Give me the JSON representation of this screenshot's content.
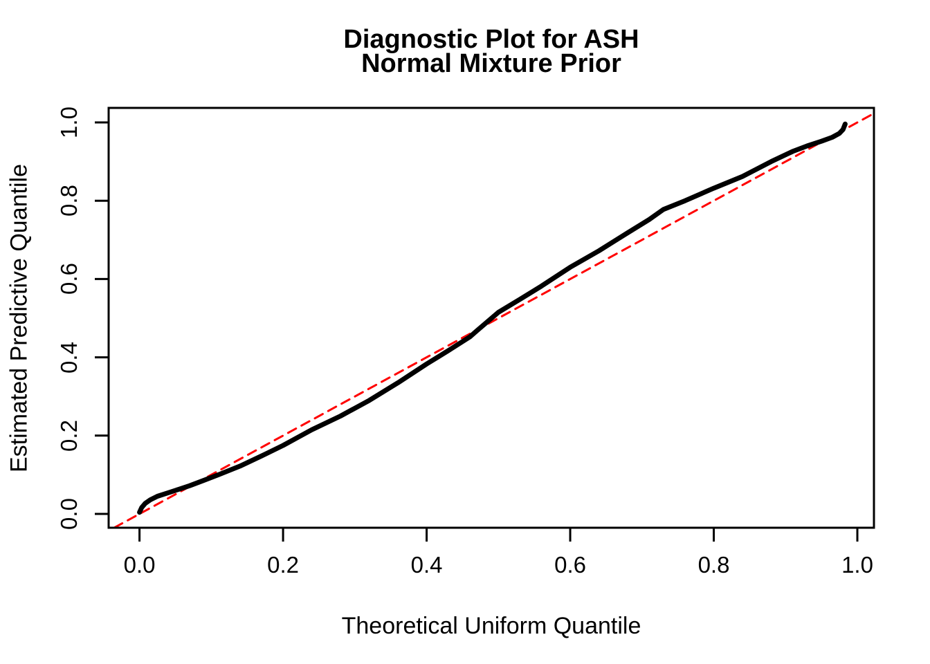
{
  "title": {
    "line1": "Diagnostic Plot for ASH",
    "line2": "Normal Mixture Prior"
  },
  "axes": {
    "xlabel": "Theoretical Uniform Quantile",
    "ylabel": "Estimated Predictive Quantile"
  },
  "colors": {
    "curve": "#000000",
    "reference_line": "#FF0000",
    "axis": "#000000",
    "background": "#FFFFFF"
  },
  "chart_data": {
    "type": "line",
    "title": "Diagnostic Plot for ASH\nNormal Mixture Prior",
    "xlabel": "Theoretical Uniform Quantile",
    "ylabel": "Estimated Predictive Quantile",
    "xlim": [
      -0.043,
      1.023
    ],
    "ylim": [
      -0.035,
      1.023
    ],
    "x_ticks": [
      0.0,
      0.2,
      0.4,
      0.6,
      0.8,
      1.0
    ],
    "x_tick_labels": [
      "0.0",
      "0.2",
      "0.4",
      "0.6",
      "0.8",
      "1.0"
    ],
    "y_ticks": [
      0.0,
      0.2,
      0.4,
      0.6,
      0.8,
      1.0
    ],
    "y_tick_labels": [
      "0.0",
      "0.2",
      "0.4",
      "0.6",
      "0.8",
      "1.0"
    ],
    "grid": false,
    "legend": "none",
    "series": [
      {
        "name": "estimated-predictive-quantile-curve",
        "color": "#000000",
        "style": "solid",
        "width": 7,
        "points": [
          [
            0.0,
            0.004
          ],
          [
            0.003,
            0.016
          ],
          [
            0.008,
            0.027
          ],
          [
            0.015,
            0.036
          ],
          [
            0.025,
            0.045
          ],
          [
            0.04,
            0.054
          ],
          [
            0.055,
            0.063
          ],
          [
            0.07,
            0.072
          ],
          [
            0.09,
            0.086
          ],
          [
            0.11,
            0.1
          ],
          [
            0.14,
            0.122
          ],
          [
            0.17,
            0.148
          ],
          [
            0.2,
            0.175
          ],
          [
            0.24,
            0.215
          ],
          [
            0.28,
            0.25
          ],
          [
            0.32,
            0.29
          ],
          [
            0.36,
            0.335
          ],
          [
            0.4,
            0.383
          ],
          [
            0.43,
            0.417
          ],
          [
            0.46,
            0.452
          ],
          [
            0.47,
            0.468
          ],
          [
            0.5,
            0.515
          ],
          [
            0.53,
            0.548
          ],
          [
            0.56,
            0.582
          ],
          [
            0.6,
            0.63
          ],
          [
            0.64,
            0.672
          ],
          [
            0.68,
            0.718
          ],
          [
            0.71,
            0.752
          ],
          [
            0.73,
            0.778
          ],
          [
            0.76,
            0.8
          ],
          [
            0.8,
            0.832
          ],
          [
            0.84,
            0.862
          ],
          [
            0.88,
            0.9
          ],
          [
            0.91,
            0.926
          ],
          [
            0.93,
            0.94
          ],
          [
            0.95,
            0.952
          ],
          [
            0.965,
            0.962
          ],
          [
            0.975,
            0.972
          ],
          [
            0.98,
            0.982
          ],
          [
            0.983,
            0.996
          ]
        ]
      },
      {
        "name": "reference-line-y-equals-x",
        "color": "#FF0000",
        "style": "dashed",
        "width": 3,
        "points": [
          [
            -0.035,
            -0.035
          ],
          [
            1.023,
            1.023
          ]
        ]
      }
    ]
  }
}
